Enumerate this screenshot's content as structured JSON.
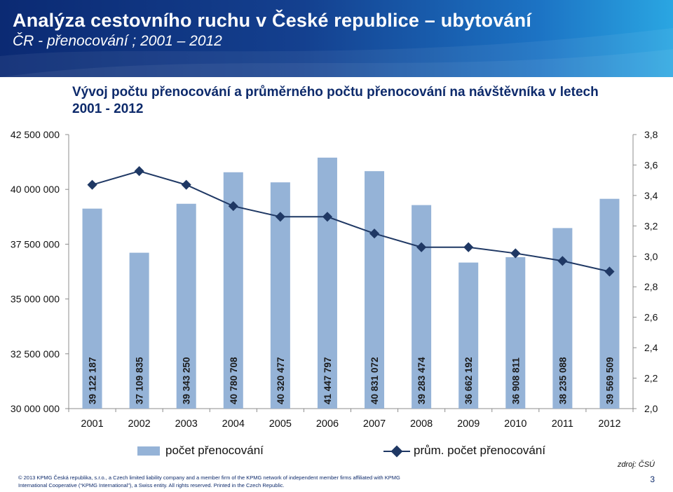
{
  "header": {
    "title": "Analýza cestovního ruchu v České republice – ubytování",
    "subtitle": "ČR - přenocování ; 2001 – 2012"
  },
  "chart_data": {
    "type": "bar",
    "title": "Vývoj počtu přenocování a průměrného počtu přenocování na návštěvníka v letech 2001 - 2012",
    "categories": [
      "2001",
      "2002",
      "2003",
      "2004",
      "2005",
      "2006",
      "2007",
      "2008",
      "2009",
      "2010",
      "2011",
      "2012"
    ],
    "series": [
      {
        "name": "počet přenocování",
        "type": "bar",
        "axis": "left",
        "values": [
          39122187,
          37109835,
          39343250,
          40780708,
          40320477,
          41447797,
          40831072,
          39283474,
          36662192,
          36908811,
          38235088,
          39569509
        ],
        "labels": [
          "39 122 187",
          "37 109 835",
          "39 343 250",
          "40 780 708",
          "40 320 477",
          "41 447 797",
          "40 831 072",
          "39 283 474",
          "36 662 192",
          "36 908 811",
          "38 235 088",
          "39 569 509"
        ],
        "color": "#95b3d7"
      },
      {
        "name": "prům. počet přenocování",
        "type": "line",
        "axis": "right",
        "values": [
          3.47,
          3.56,
          3.47,
          3.33,
          3.26,
          3.26,
          3.15,
          3.06,
          3.06,
          3.02,
          2.97,
          2.9
        ],
        "color": "#1f3864"
      }
    ],
    "y_left": {
      "min": 30000000,
      "max": 42500000,
      "ticks": [
        30000000,
        32500000,
        35000000,
        37500000,
        40000000,
        42500000
      ],
      "tick_labels": [
        "30 000 000",
        "32 500 000",
        "35 000 000",
        "37 500 000",
        "40 000 000",
        "42 500 000"
      ]
    },
    "y_right": {
      "min": 2.0,
      "max": 3.8,
      "ticks": [
        2.0,
        2.2,
        2.4,
        2.6,
        2.8,
        3.0,
        3.2,
        3.4,
        3.6,
        3.8
      ],
      "tick_labels": [
        "2,0",
        "2,2",
        "2,4",
        "2,6",
        "2,8",
        "3,0",
        "3,2",
        "3,4",
        "3,6",
        "3,8"
      ]
    },
    "grid": false,
    "legend": "bottom"
  },
  "footer": {
    "source": "zdroj: ČSÚ",
    "copyright_line1": "© 2013 KPMG Česká republika, s.r.o., a Czech limited liability company and a member firm of the KPMG network of independent member firms affiliated with KPMG",
    "copyright_line2": "International Cooperative (“KPMG International”), a Swiss entity. All rights reserved. Printed in the Czech Republic.",
    "page_number": "3"
  }
}
